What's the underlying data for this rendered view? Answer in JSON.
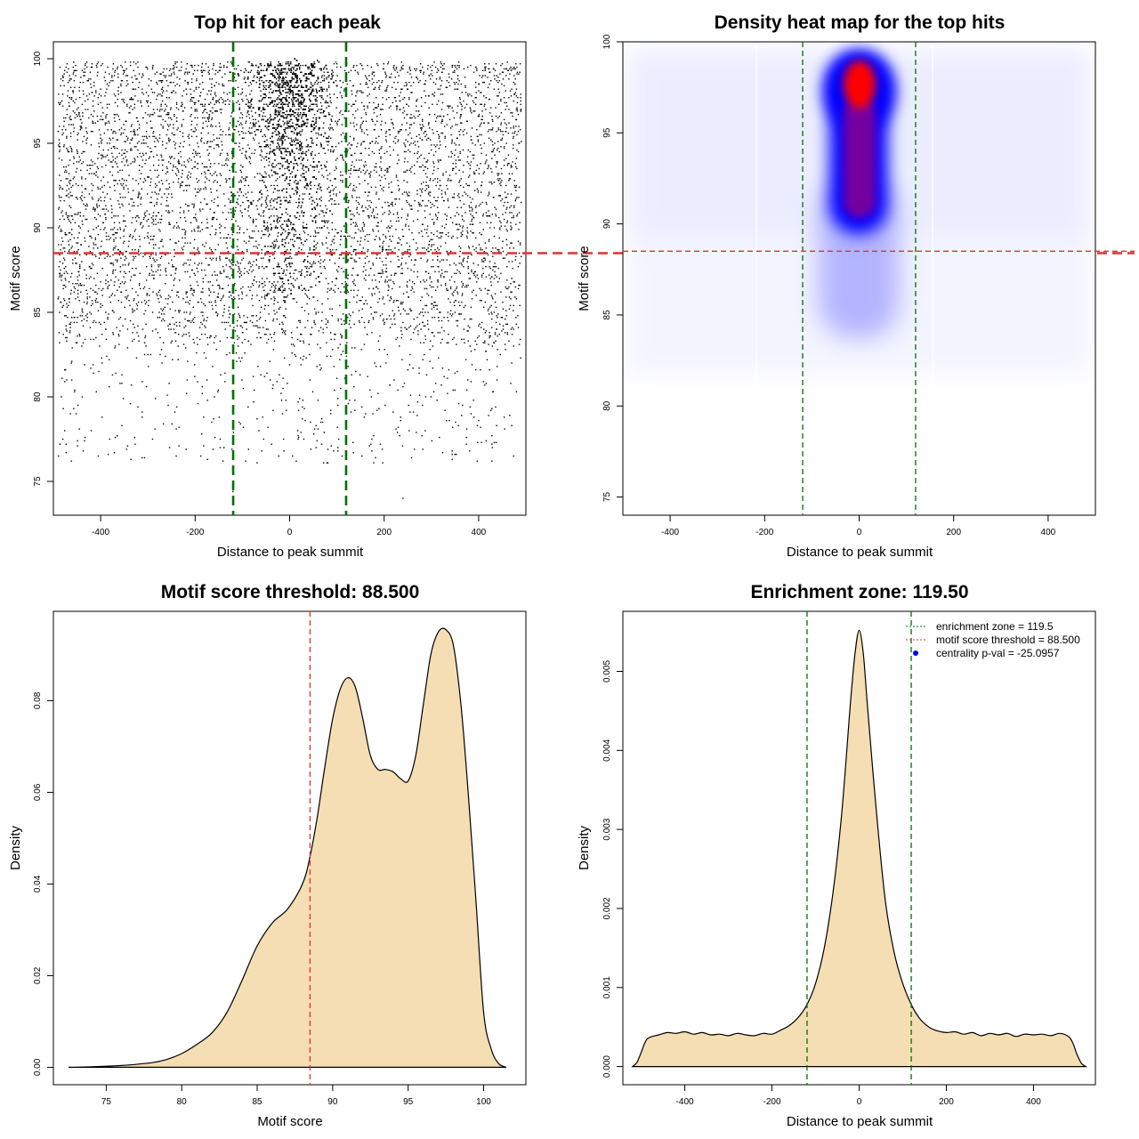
{
  "chart_data": [
    {
      "type": "scatter",
      "title": "Top hit for each peak",
      "xlabel": "Distance to peak summit",
      "ylabel": "Motif score",
      "xlim": [
        -500,
        500
      ],
      "ylim": [
        73,
        101
      ],
      "x_ticks": [
        -400,
        -200,
        0,
        200,
        400
      ],
      "y_ticks": [
        75,
        80,
        85,
        90,
        95,
        100
      ],
      "x_tick_labels": [
        "-400",
        "-200",
        "0",
        "200",
        "400"
      ],
      "y_tick_labels": [
        "75",
        "80",
        "85",
        "90",
        "95",
        "100"
      ],
      "series": [
        {
          "name": "top hits",
          "description": "dense uniform background for |x|<=500 concentrated at scores 83-100, strongly enriched cloud within |x|<100 at scores 86-100",
          "x": [
            -473,
            -452,
            -410,
            -360,
            -302,
            -250,
            -170,
            -120,
            -60,
            -10,
            0,
            15,
            55,
            110,
            170,
            240,
            300,
            365,
            420,
            470,
            -480,
            480,
            -30,
            35,
            -90,
            90
          ],
          "y": [
            77.2,
            79.0,
            83.5,
            90.3,
            86.1,
            94.2,
            92.8,
            74.4,
            97.5,
            99.2,
            91.6,
            95.0,
            88.4,
            84.3,
            93.0,
            74.0,
            88.9,
            86.5,
            96.2,
            82.0,
            99.0,
            97.0,
            96.8,
            98.3,
            89.9,
            92.5
          ]
        }
      ],
      "hlines": [
        {
          "y": 88.5,
          "color": "#e03030",
          "style": "dashed"
        }
      ],
      "vlines": [
        {
          "x": -119.5,
          "color": "#007000",
          "style": "dashed"
        },
        {
          "x": 119.5,
          "color": "#007000",
          "style": "dashed"
        }
      ]
    },
    {
      "type": "heatmap",
      "title": "Density heat map for the top hits",
      "xlabel": "Distance to peak summit",
      "ylabel": "Motif score",
      "xlim": [
        -500,
        500
      ],
      "ylim": [
        74,
        100
      ],
      "x_ticks": [
        -400,
        -200,
        0,
        200,
        400
      ],
      "y_ticks": [
        75,
        80,
        85,
        90,
        95,
        100
      ],
      "x_tick_labels": [
        "-400",
        "-200",
        "0",
        "200",
        "400"
      ],
      "y_tick_labels": [
        "75",
        "80",
        "85",
        "90",
        "95",
        "100"
      ],
      "colormap": [
        "#ffffff",
        "#0000ff",
        "#ff0000"
      ],
      "hotspots": [
        {
          "x": 0,
          "y": 97.8,
          "intensity": 1.0
        },
        {
          "x": 0,
          "y": 94.5,
          "intensity": 0.6
        },
        {
          "x": 0,
          "y": 91.5,
          "intensity": 0.78
        },
        {
          "x": 0,
          "y": 87.0,
          "intensity": 0.3
        }
      ],
      "hlines": [
        {
          "y": 88.5,
          "color": "#e03030",
          "style": "dashed"
        }
      ],
      "vlines": [
        {
          "x": -119.5,
          "color": "#007000",
          "style": "dashed"
        },
        {
          "x": 119.5,
          "color": "#007000",
          "style": "dashed"
        }
      ]
    },
    {
      "type": "area",
      "title": "Motif score threshold: 88.500",
      "xlabel": "Motif score",
      "ylabel": "Density",
      "xlim": [
        71.5,
        102.8
      ],
      "ylim": [
        -0.0038,
        0.0995
      ],
      "x_ticks": [
        75,
        80,
        85,
        90,
        95,
        100
      ],
      "y_ticks": [
        0.0,
        0.02,
        0.04,
        0.06,
        0.08
      ],
      "x_tick_labels": [
        "75",
        "80",
        "85",
        "90",
        "95",
        "100"
      ],
      "y_tick_labels": [
        "0.00",
        "0.02",
        "0.04",
        "0.06",
        "0.08"
      ],
      "fill": "#f5deb3",
      "x": [
        72.5,
        74,
        76,
        78,
        79,
        80,
        81,
        82,
        83,
        84,
        85,
        86,
        87,
        88,
        88.5,
        89,
        89.5,
        90,
        90.5,
        91,
        91.5,
        92,
        92.5,
        93,
        93.5,
        94,
        94.5,
        95,
        95.5,
        96,
        96.5,
        97,
        97.5,
        98,
        98.5,
        99,
        99.5,
        100,
        100.5,
        101,
        101.5
      ],
      "y": [
        0.0,
        0.0001,
        0.0004,
        0.001,
        0.0017,
        0.003,
        0.005,
        0.0075,
        0.012,
        0.019,
        0.0265,
        0.0315,
        0.0345,
        0.04,
        0.046,
        0.055,
        0.066,
        0.076,
        0.0825,
        0.085,
        0.083,
        0.076,
        0.068,
        0.065,
        0.065,
        0.0645,
        0.063,
        0.0625,
        0.068,
        0.079,
        0.09,
        0.095,
        0.0955,
        0.092,
        0.079,
        0.059,
        0.036,
        0.012,
        0.004,
        0.0008,
        0.0
      ],
      "vlines": [
        {
          "x": 88.5,
          "color": "#e03030",
          "style": "dashed"
        }
      ]
    },
    {
      "type": "area",
      "title": "Enrichment zone: 119.50",
      "xlabel": "Distance to peak summit",
      "ylabel": "Density",
      "xlim": [
        -542,
        542
      ],
      "ylim": [
        -0.00023,
        0.00576
      ],
      "x_ticks": [
        -400,
        -200,
        0,
        200,
        400
      ],
      "y_ticks": [
        0.0,
        0.001,
        0.002,
        0.003,
        0.004,
        0.005
      ],
      "x_tick_labels": [
        "-400",
        "-200",
        "0",
        "200",
        "400"
      ],
      "y_tick_labels": [
        "0.000",
        "0.001",
        "0.002",
        "0.003",
        "0.004",
        "0.005"
      ],
      "fill": "#f5deb3",
      "x": [
        -520,
        -510,
        -500,
        -490,
        -480,
        -460,
        -440,
        -420,
        -400,
        -380,
        -360,
        -340,
        -320,
        -300,
        -280,
        -260,
        -240,
        -220,
        -200,
        -180,
        -160,
        -140,
        -120,
        -100,
        -80,
        -60,
        -40,
        -20,
        -10,
        0,
        10,
        20,
        40,
        60,
        80,
        100,
        120,
        140,
        160,
        180,
        200,
        220,
        240,
        260,
        280,
        300,
        320,
        340,
        360,
        380,
        400,
        420,
        440,
        460,
        480,
        490,
        500,
        510,
        520
      ],
      "y": [
        0.0,
        5e-05,
        0.00018,
        0.00032,
        0.00037,
        0.0004,
        0.00043,
        0.00042,
        0.00044,
        0.00041,
        0.00043,
        0.0004,
        0.00041,
        0.00039,
        0.00042,
        0.0004,
        0.00039,
        0.00042,
        0.00041,
        0.00046,
        0.00052,
        0.00062,
        0.00078,
        0.00105,
        0.0015,
        0.0022,
        0.0032,
        0.0046,
        0.0052,
        0.00552,
        0.0052,
        0.0045,
        0.0032,
        0.0021,
        0.00145,
        0.00105,
        0.00078,
        0.0006,
        0.0005,
        0.00045,
        0.00043,
        0.00044,
        0.00041,
        0.00043,
        0.00039,
        0.00042,
        0.0004,
        0.00042,
        0.00038,
        0.00041,
        0.0004,
        0.00041,
        0.00039,
        0.00042,
        0.00038,
        0.0003,
        0.00015,
        4e-05,
        0.0
      ],
      "vlines": [
        {
          "x": -119.5,
          "color": "#007000",
          "style": "dashed"
        },
        {
          "x": 119.5,
          "color": "#007000",
          "style": "dashed"
        }
      ],
      "legend": {
        "position": "top-right",
        "entries": [
          {
            "label": "enrichment zone = 119.5",
            "color": "#007000",
            "marker": "dotted-line"
          },
          {
            "label": "motif score threshold = 88.500",
            "color": "#e03030",
            "marker": "dotted-line"
          },
          {
            "label": "centrality p-val = -25.0957",
            "color": "#0000ff",
            "marker": "dot"
          }
        ]
      }
    }
  ]
}
